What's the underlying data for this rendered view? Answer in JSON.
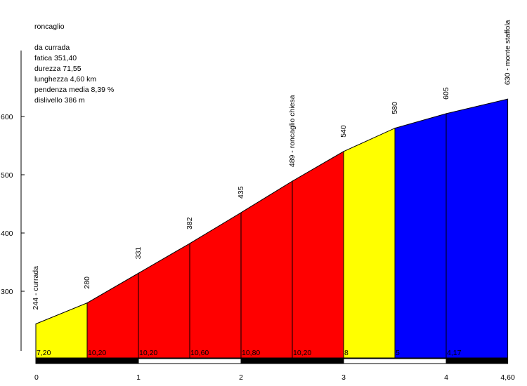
{
  "info": {
    "name": "roncaglio",
    "start": "da currada",
    "fatica": "fatica 351,40",
    "durezza": "durezza 71,55",
    "lunghezza": "lunghezza 4,60 km",
    "pendenza": "pendenza media 8,39 %",
    "dislivello": "dislivello 386 m"
  },
  "chart_data": {
    "type": "area",
    "x": [
      0,
      0.5,
      1.0,
      1.5,
      2.0,
      2.5,
      3.0,
      3.5,
      4.0,
      4.6
    ],
    "elevations": [
      244,
      280,
      331,
      382,
      435,
      489,
      540,
      580,
      605,
      630
    ],
    "point_labels": [
      "244 - currada",
      "280",
      "331",
      "382",
      "435",
      "489 - roncaglio chiesa",
      "540",
      "580",
      "605",
      "630 - monte staffola"
    ],
    "segment_gradients": [
      "7,20",
      "10,20",
      "10,20",
      "10,60",
      "10,80",
      "10,20",
      "8",
      "5",
      "4,17"
    ],
    "segment_colors": [
      "#ffff00",
      "#ff0000",
      "#ff0000",
      "#ff0000",
      "#ff0000",
      "#ff0000",
      "#ffff00",
      "#0000ff",
      "#0000ff"
    ],
    "y_ticks": [
      "300",
      "400",
      "500",
      "600"
    ],
    "x_ticks": [
      "0",
      "1",
      "2",
      "3",
      "4",
      "4,60"
    ],
    "ylim": [
      200,
      650
    ],
    "xlim": [
      0,
      4.6
    ]
  }
}
